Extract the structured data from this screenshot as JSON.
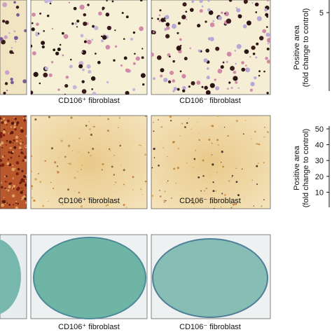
{
  "panels": {
    "rows": [
      {
        "captions": [
          "CD106⁺ fibroblast",
          "CD106⁻ fibroblast"
        ]
      },
      {
        "captions": [
          "CD106⁺ fibroblast",
          "CD106⁻ fibroblast"
        ]
      },
      {
        "captions": [
          "CD106⁺ fibroblast",
          "CD106⁻ fibroblast"
        ]
      }
    ]
  },
  "charts": [
    {
      "y_label": [
        "Positive area",
        "(fold change to control)"
      ],
      "yticks": [
        5
      ]
    },
    {
      "y_label": [
        "Positive area",
        "(fold change to control)"
      ],
      "yticks": [
        50,
        40,
        30,
        20,
        10
      ]
    }
  ]
}
